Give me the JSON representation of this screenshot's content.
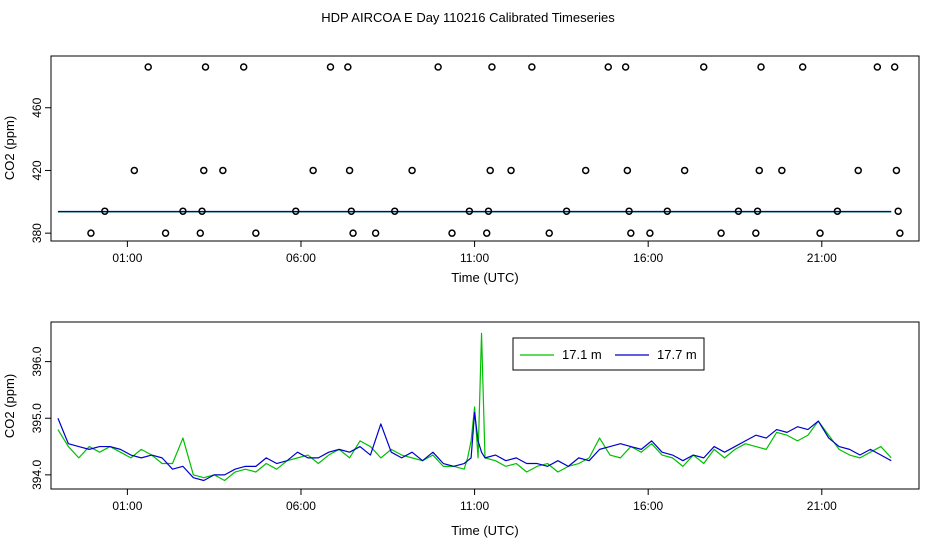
{
  "title": "HDP AIRCOA E  Day 110216  Calibrated Timeseries",
  "colors": {
    "green": "#00c000",
    "blue": "#0000cc",
    "frame": "#000000"
  },
  "chart_data": [
    {
      "type": "scatter",
      "xlabel": "Time (UTC)",
      "ylabel": "CO2 (ppm)",
      "xlim": [
        -1.2,
        23.8
      ],
      "ylim": [
        375,
        493
      ],
      "x_ticks": [
        "01:00",
        "06:00",
        "11:00",
        "16:00",
        "21:00"
      ],
      "x_tick_values": [
        1,
        6,
        11,
        16,
        21
      ],
      "y_ticks": [
        380,
        420,
        460
      ],
      "grid": false,
      "series": [
        {
          "marker": "open-circle",
          "points": [
            [
              -0.05,
              380
            ],
            [
              0.35,
              394
            ],
            [
              1.2,
              420
            ],
            [
              1.6,
              486
            ],
            [
              2.1,
              380
            ],
            [
              2.6,
              394
            ],
            [
              3.1,
              380
            ],
            [
              3.15,
              394
            ],
            [
              3.2,
              420
            ],
            [
              3.25,
              486
            ],
            [
              3.75,
              420
            ],
            [
              4.35,
              486
            ],
            [
              4.7,
              380
            ],
            [
              5.85,
              394
            ],
            [
              6.35,
              420
            ],
            [
              6.85,
              486
            ],
            [
              7.35,
              486
            ],
            [
              7.4,
              420
            ],
            [
              7.45,
              394
            ],
            [
              7.5,
              380
            ],
            [
              8.15,
              380
            ],
            [
              8.7,
              394
            ],
            [
              9.2,
              420
            ],
            [
              9.95,
              486
            ],
            [
              10.35,
              380
            ],
            [
              10.85,
              394
            ],
            [
              11.35,
              380
            ],
            [
              11.4,
              394
            ],
            [
              11.45,
              420
            ],
            [
              11.5,
              486
            ],
            [
              12.05,
              420
            ],
            [
              12.65,
              486
            ],
            [
              13.15,
              380
            ],
            [
              13.65,
              394
            ],
            [
              14.2,
              420
            ],
            [
              14.85,
              486
            ],
            [
              15.35,
              486
            ],
            [
              15.4,
              420
            ],
            [
              15.45,
              394
            ],
            [
              15.5,
              380
            ],
            [
              16.05,
              380
            ],
            [
              16.55,
              394
            ],
            [
              17.05,
              420
            ],
            [
              17.6,
              486
            ],
            [
              18.1,
              380
            ],
            [
              18.6,
              394
            ],
            [
              19.1,
              380
            ],
            [
              19.15,
              394
            ],
            [
              19.2,
              420
            ],
            [
              19.25,
              486
            ],
            [
              19.85,
              420
            ],
            [
              20.45,
              486
            ],
            [
              20.95,
              380
            ],
            [
              21.45,
              394
            ],
            [
              22.05,
              420
            ],
            [
              22.6,
              486
            ],
            [
              23.1,
              486
            ],
            [
              23.15,
              420
            ],
            [
              23.2,
              394
            ],
            [
              23.25,
              380
            ]
          ]
        },
        {
          "name": "17.1 m",
          "line": true,
          "x": [
            -1.0,
            23.0
          ],
          "y": [
            393.6,
            393.6
          ]
        },
        {
          "name": "17.7 m",
          "line": true,
          "x": [
            -1.0,
            23.0
          ],
          "y": [
            393.8,
            393.8
          ]
        }
      ]
    },
    {
      "type": "line",
      "xlabel": "Time (UTC)",
      "ylabel": "CO2 (ppm)",
      "xlim": [
        -1.2,
        23.8
      ],
      "ylim": [
        393.75,
        396.7
      ],
      "x_ticks": [
        "01:00",
        "06:00",
        "11:00",
        "16:00",
        "21:00"
      ],
      "x_tick_values": [
        1,
        6,
        11,
        16,
        21
      ],
      "y_ticks": [
        "394.0",
        "395.0",
        "396.0"
      ],
      "y_tick_values": [
        394,
        395,
        396
      ],
      "grid": false,
      "legend": "top-center",
      "x": [
        -1.0,
        -0.7,
        -0.4,
        -0.1,
        0.2,
        0.5,
        0.8,
        1.1,
        1.4,
        1.7,
        2.0,
        2.3,
        2.6,
        2.9,
        3.2,
        3.5,
        3.8,
        4.1,
        4.4,
        4.7,
        5.0,
        5.3,
        5.6,
        5.9,
        6.2,
        6.5,
        6.8,
        7.1,
        7.4,
        7.7,
        8.0,
        8.3,
        8.6,
        8.9,
        9.2,
        9.5,
        9.8,
        10.1,
        10.4,
        10.7,
        10.8,
        10.9,
        11.0,
        11.1,
        11.2,
        11.3,
        11.6,
        11.9,
        12.2,
        12.5,
        12.8,
        13.1,
        13.4,
        13.7,
        14.0,
        14.3,
        14.6,
        14.9,
        15.2,
        15.5,
        15.8,
        16.1,
        16.4,
        16.7,
        17.0,
        17.3,
        17.6,
        17.9,
        18.2,
        18.5,
        18.8,
        19.1,
        19.4,
        19.7,
        20.0,
        20.3,
        20.6,
        20.9,
        21.2,
        21.5,
        21.8,
        22.1,
        22.4,
        22.7,
        23.0
      ],
      "series": [
        {
          "name": "17.1 m",
          "values": [
            394.8,
            394.5,
            394.3,
            394.5,
            394.4,
            394.5,
            394.4,
            394.3,
            394.45,
            394.35,
            394.2,
            394.2,
            394.65,
            394.0,
            393.95,
            394.0,
            393.9,
            394.05,
            394.1,
            394.05,
            394.2,
            394.1,
            394.25,
            394.3,
            394.35,
            394.2,
            394.35,
            394.45,
            394.3,
            394.6,
            394.5,
            394.3,
            394.45,
            394.35,
            394.3,
            394.25,
            394.35,
            394.15,
            394.15,
            394.1,
            394.3,
            394.6,
            395.2,
            394.3,
            396.5,
            394.3,
            394.25,
            394.15,
            394.2,
            394.05,
            394.15,
            394.2,
            394.05,
            394.15,
            394.2,
            394.3,
            394.65,
            394.35,
            394.3,
            394.5,
            394.4,
            394.55,
            394.35,
            394.3,
            394.15,
            394.35,
            394.2,
            394.45,
            394.3,
            394.45,
            394.55,
            394.5,
            394.45,
            394.75,
            394.7,
            394.6,
            394.7,
            394.95,
            394.7,
            394.45,
            394.35,
            394.3,
            394.4,
            394.5,
            394.3
          ]
        },
        {
          "name": "17.7 m",
          "values": [
            395.0,
            394.55,
            394.5,
            394.45,
            394.5,
            394.5,
            394.45,
            394.35,
            394.3,
            394.35,
            394.3,
            394.1,
            394.15,
            393.95,
            393.9,
            394.0,
            394.0,
            394.1,
            394.15,
            394.15,
            394.3,
            394.2,
            394.25,
            394.4,
            394.3,
            394.3,
            394.4,
            394.45,
            394.4,
            394.5,
            394.35,
            394.9,
            394.4,
            394.3,
            394.4,
            394.25,
            394.4,
            394.2,
            394.15,
            394.2,
            394.25,
            394.3,
            395.1,
            394.6,
            394.4,
            394.3,
            394.35,
            394.25,
            394.3,
            394.2,
            394.2,
            394.15,
            394.25,
            394.15,
            394.3,
            394.25,
            394.45,
            394.5,
            394.55,
            394.5,
            394.45,
            394.6,
            394.4,
            394.35,
            394.25,
            394.35,
            394.3,
            394.5,
            394.4,
            394.5,
            394.6,
            394.7,
            394.65,
            394.8,
            394.75,
            394.85,
            394.8,
            394.95,
            394.65,
            394.5,
            394.45,
            394.35,
            394.45,
            394.35,
            394.25
          ]
        }
      ]
    }
  ]
}
